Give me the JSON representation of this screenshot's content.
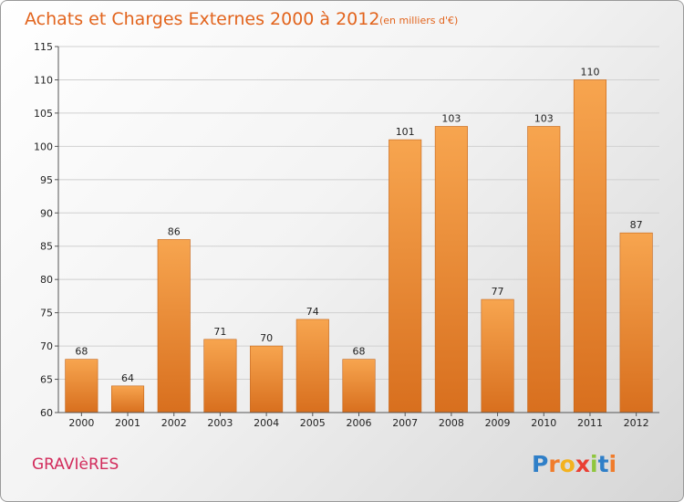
{
  "title": "Achats et Charges Externes 2000 à 2012",
  "subtitle": "(en milliers d'€)",
  "place_name": "GRAVIèRES",
  "logo": {
    "letters": [
      "P",
      "r",
      "o",
      "x",
      "i",
      "t",
      "i"
    ],
    "colors": [
      "#2f7fc8",
      "#f07c2b",
      "#f3b21f",
      "#ea3f33",
      "#8fc63d",
      "#2f7fc8",
      "#f07c2b"
    ]
  },
  "colors": {
    "bar_light": "#f7a54f",
    "bar_dark": "#d86f1e",
    "title": "#e2641d",
    "place": "#d22b5b"
  },
  "chart_data": {
    "type": "bar",
    "categories": [
      "2000",
      "2001",
      "2002",
      "2003",
      "2004",
      "2005",
      "2006",
      "2007",
      "2008",
      "2009",
      "2010",
      "2011",
      "2012"
    ],
    "values": [
      68,
      64,
      86,
      71,
      70,
      74,
      68,
      101,
      103,
      77,
      103,
      110,
      87
    ],
    "ylim": [
      60,
      115
    ],
    "yticks": [
      60,
      65,
      70,
      75,
      80,
      85,
      90,
      95,
      100,
      105,
      110,
      115
    ],
    "grid": true,
    "legend": "none"
  }
}
